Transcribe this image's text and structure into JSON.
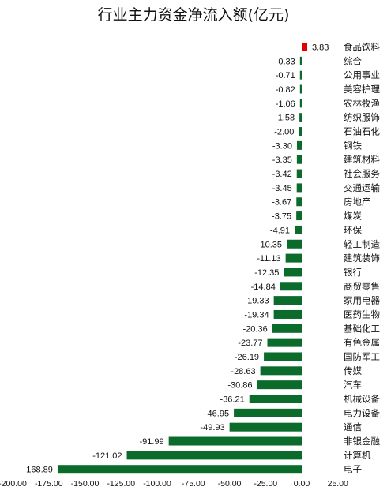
{
  "chart_data": {
    "type": "bar",
    "orientation": "horizontal",
    "title": "行业主力资金净流入额(亿元)",
    "xlim": [
      -200,
      25
    ],
    "xticks": [
      "-200.00",
      "-175.00",
      "-150.00",
      "-125.00",
      "-100.00",
      "-75.00",
      "-50.00",
      "-25.00",
      "0.00",
      "25.00"
    ],
    "xtick_values": [
      -200,
      -175,
      -150,
      -125,
      -100,
      -75,
      -50,
      -25,
      0,
      25
    ],
    "grid": false,
    "colors": {
      "positive": "#e00000",
      "negative": "#0b6b2b"
    },
    "categories": [
      "食品饮料",
      "综合",
      "公用事业",
      "美容护理",
      "农林牧渔",
      "纺织服饰",
      "石油石化",
      "钢铁",
      "建筑材料",
      "社会服务",
      "交通运输",
      "房地产",
      "煤炭",
      "环保",
      "轻工制造",
      "建筑装饰",
      "银行",
      "商贸零售",
      "家用电器",
      "医药生物",
      "基础化工",
      "有色金属",
      "国防军工",
      "传媒",
      "汽车",
      "机械设备",
      "电力设备",
      "通信",
      "非银金融",
      "计算机",
      "电子"
    ],
    "values": [
      3.83,
      -0.33,
      -0.71,
      -0.82,
      -1.06,
      -1.58,
      -2.0,
      -3.3,
      -3.35,
      -3.42,
      -3.45,
      -3.67,
      -3.75,
      -4.91,
      -10.35,
      -11.13,
      -12.35,
      -14.84,
      -19.33,
      -19.34,
      -20.36,
      -23.77,
      -26.19,
      -28.63,
      -30.86,
      -36.21,
      -46.95,
      -49.93,
      -91.99,
      -121.02,
      -168.89
    ],
    "value_labels": [
      "3.83",
      "-0.33",
      "-0.71",
      "-0.82",
      "-1.06",
      "-1.58",
      "-2.00",
      "-3.30",
      "-3.35",
      "-3.42",
      "-3.45",
      "-3.67",
      "-3.75",
      "-4.91",
      "-10.35",
      "-11.13",
      "-12.35",
      "-14.84",
      "-19.33",
      "-19.34",
      "-20.36",
      "-23.77",
      "-26.19",
      "-28.63",
      "-30.86",
      "-36.21",
      "-46.95",
      "-49.93",
      "-91.99",
      "-121.02",
      "-168.89"
    ]
  }
}
